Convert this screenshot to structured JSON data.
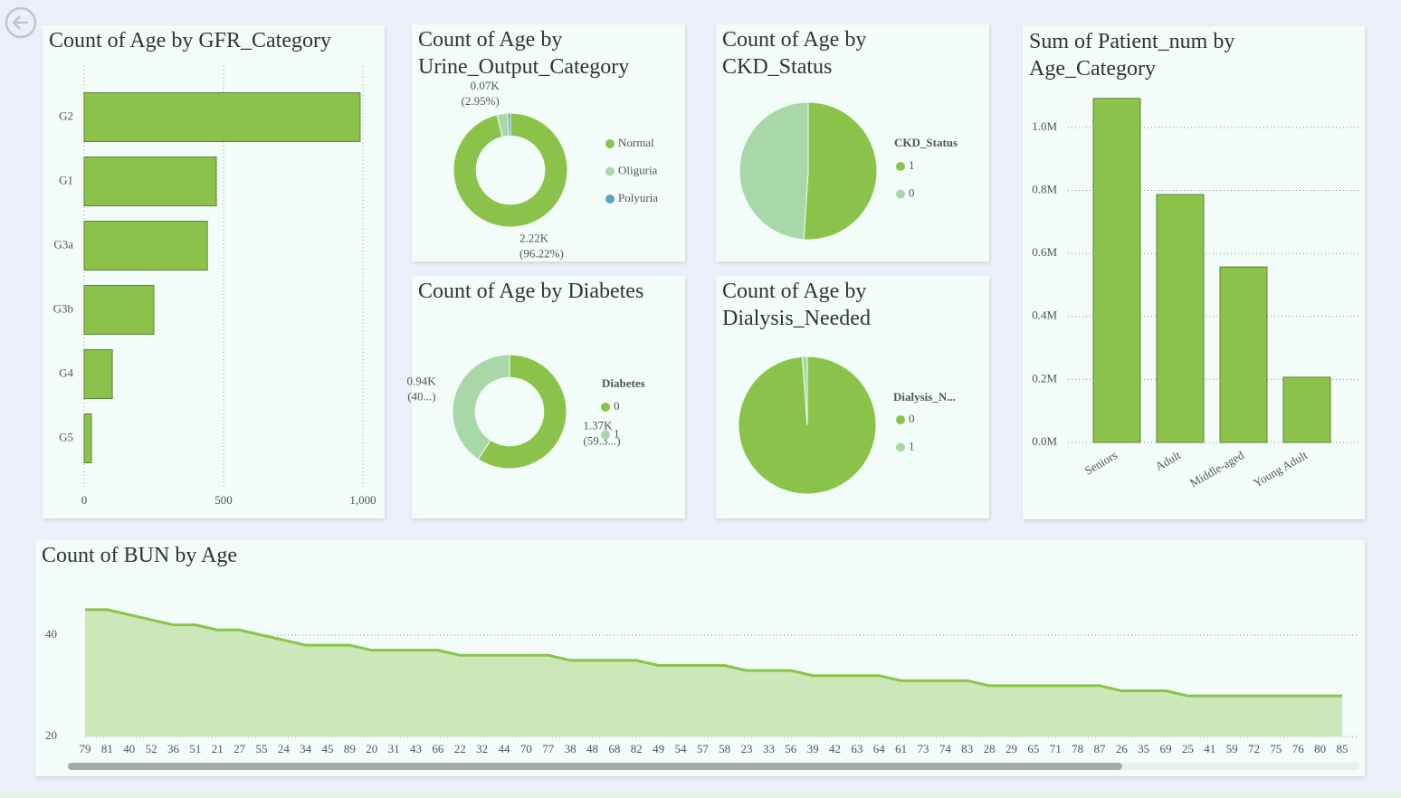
{
  "chart_data": [
    {
      "type": "bar",
      "orientation": "horizontal",
      "title": "Count of Age by GFR_Category",
      "categories": [
        "G2",
        "G1",
        "G3a",
        "G3b",
        "G4",
        "G5"
      ],
      "values": [
        990,
        474,
        442,
        250,
        101,
        26
      ],
      "color": "#8bc34a",
      "xlim": [
        0,
        1000
      ],
      "xticks": [
        0,
        500,
        {
          "value": 1000,
          "label": "1,000"
        }
      ],
      "grid": true
    },
    {
      "type": "donut",
      "title": "Count of Age by Urine_Output_Category",
      "categories": [
        "Normal",
        "Oliguria",
        "Polyuria"
      ],
      "values": [
        2220,
        68,
        19
      ],
      "value_labels": [
        "2.22K",
        "0.07K",
        null
      ],
      "percent_labels": [
        "(96.22%)",
        "(2.95%)",
        null
      ],
      "colors": [
        "#8bc34a",
        "#a8d8a8",
        "#5ba3c9"
      ]
    },
    {
      "type": "pie",
      "title": "Count of Age by CKD_Status",
      "legend_title": "CKD_Status",
      "categories": [
        "1",
        "0"
      ],
      "values": [
        1177,
        1130
      ],
      "colors": [
        "#8bc34a",
        "#a8d8a8"
      ]
    },
    {
      "type": "bar",
      "orientation": "vertical",
      "title": "Sum of Patient_num by Age_Category",
      "categories": [
        "Seniors",
        "Adult",
        "Middle-aged",
        "Young Adult"
      ],
      "values": [
        1092000,
        787000,
        557000,
        207000
      ],
      "color": "#8bc34a",
      "ylim": [
        0,
        1100000
      ],
      "yticks": [
        {
          "value": 0,
          "label": "0.0M"
        },
        {
          "value": 200000,
          "label": "0.2M"
        },
        {
          "value": 400000,
          "label": "0.4M"
        },
        {
          "value": 600000,
          "label": "0.6M"
        },
        {
          "value": 800000,
          "label": "0.8M"
        },
        {
          "value": 1000000,
          "label": "1.0M"
        }
      ],
      "grid": true
    },
    {
      "type": "donut",
      "title": "Count of Age by Diabetes",
      "legend_title": "Diabetes",
      "categories": [
        "0",
        "1"
      ],
      "values": [
        1370,
        940
      ],
      "value_labels": [
        "1.37K",
        "0.94K"
      ],
      "percent_labels": [
        "(59.3...)",
        "(40...)"
      ],
      "colors": [
        "#8bc34a",
        "#a8d8a8"
      ]
    },
    {
      "type": "pie",
      "title": "Count of Age by Dialysis_Needed",
      "legend_title": "Dialysis_N...",
      "categories": [
        "0",
        "1"
      ],
      "values": [
        2280,
        27
      ],
      "colors": [
        "#8bc34a",
        "#a8d8a8"
      ]
    },
    {
      "type": "area",
      "title": "Count of BUN by Age",
      "categories": [
        "79",
        "81",
        "40",
        "52",
        "36",
        "51",
        "21",
        "27",
        "55",
        "24",
        "34",
        "45",
        "89",
        "20",
        "31",
        "43",
        "66",
        "22",
        "32",
        "44",
        "70",
        "77",
        "38",
        "48",
        "68",
        "82",
        "49",
        "54",
        "57",
        "58",
        "23",
        "33",
        "56",
        "39",
        "42",
        "63",
        "64",
        "61",
        "73",
        "74",
        "83",
        "28",
        "29",
        "65",
        "71",
        "78",
        "87",
        "26",
        "35",
        "69",
        "25",
        "41",
        "59",
        "72",
        "75",
        "76",
        "80",
        "85"
      ],
      "values": [
        45,
        45,
        44,
        43,
        42,
        42,
        41,
        41,
        40,
        39,
        38,
        38,
        38,
        37,
        37,
        37,
        37,
        36,
        36,
        36,
        36,
        36,
        35,
        35,
        35,
        35,
        34,
        34,
        34,
        34,
        33,
        33,
        33,
        32,
        32,
        32,
        32,
        31,
        31,
        31,
        31,
        30,
        30,
        30,
        30,
        30,
        30,
        29,
        29,
        29,
        28,
        28,
        28,
        28,
        28,
        28,
        28,
        28
      ],
      "color": "#8bc34a",
      "fill": "#cde8b8",
      "ylim": [
        20,
        48
      ],
      "yticks": [
        20,
        40
      ],
      "grid": true
    }
  ]
}
